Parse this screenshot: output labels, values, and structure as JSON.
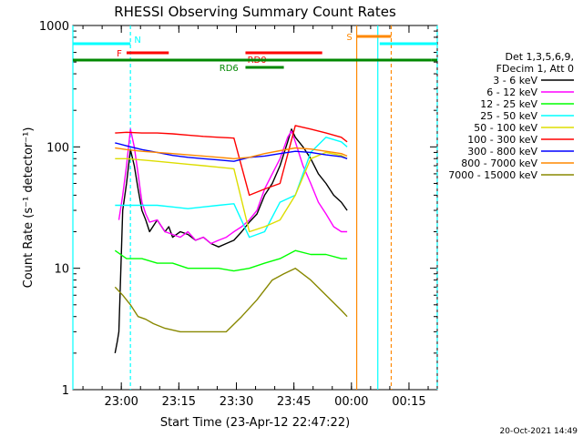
{
  "chart_data": {
    "type": "line",
    "title": "RHESSI Observing Summary Count Rates",
    "xlabel": "Start Time (23-Apr-12 22:47:22)",
    "ylabel": "Count Rate (s⁻¹ detector⁻¹)",
    "y_scale": "log",
    "xlim_minutes_from_start": [
      0,
      95
    ],
    "ylim": [
      1,
      1000
    ],
    "x_tick_labels": [
      "23:00",
      "23:15",
      "23:30",
      "23:45",
      "00:00",
      "00:15"
    ],
    "x_tick_minutes": [
      12.63,
      27.63,
      42.63,
      57.63,
      72.63,
      87.63
    ],
    "y_tick_labels": [
      "1",
      "10",
      "100",
      "1000"
    ],
    "y_tick_values": [
      1,
      10,
      100,
      1000
    ],
    "legend_placement": "right",
    "legend_header": [
      "Det 1,3,5,6,9,",
      "FDecim 1, Att 0"
    ],
    "footer_date": "20-Oct-2021 14:49",
    "series": [
      {
        "name": "3 - 6 keV",
        "color": "#000000",
        "x": [
          11,
          11.6,
          12,
          13,
          14,
          15,
          16,
          17,
          18,
          19,
          20,
          22,
          24,
          25,
          26,
          28,
          30,
          32,
          34,
          36,
          38,
          40,
          42,
          44,
          46,
          48,
          50,
          52,
          54,
          56,
          57,
          58,
          60,
          62,
          64,
          66,
          68,
          70,
          71.5
        ],
        "y": [
          2,
          2.5,
          3,
          30,
          50,
          95,
          70,
          45,
          30,
          25,
          20,
          25,
          20,
          22,
          18,
          20,
          19,
          17,
          18,
          16,
          15,
          16,
          17,
          20,
          24,
          28,
          40,
          50,
          70,
          110,
          140,
          120,
          100,
          80,
          60,
          50,
          40,
          35,
          30
        ]
      },
      {
        "name": "6 - 12 keV",
        "color": "#ff00ff",
        "x": [
          12,
          13,
          14,
          15,
          16,
          17,
          18,
          19,
          20,
          22,
          24,
          26,
          28,
          30,
          32,
          34,
          36,
          38,
          40,
          42,
          44,
          46,
          48,
          50,
          52,
          54,
          56,
          57,
          58,
          60,
          62,
          64,
          66,
          68,
          70,
          71.5
        ],
        "y": [
          25,
          40,
          70,
          140,
          100,
          60,
          35,
          28,
          24,
          25,
          20,
          19,
          18,
          20,
          17,
          18,
          16,
          17,
          18,
          20,
          22,
          25,
          30,
          45,
          60,
          80,
          120,
          135,
          110,
          70,
          50,
          35,
          28,
          22,
          20,
          20
        ]
      },
      {
        "name": "12 - 25 keV",
        "color": "#00ff00",
        "x": [
          11,
          14,
          18,
          22,
          26,
          30,
          34,
          38,
          42,
          46,
          50,
          54,
          58,
          62,
          66,
          70,
          71.5
        ],
        "y": [
          14,
          12,
          12,
          11,
          11,
          10,
          10,
          10,
          9.5,
          10,
          11,
          12,
          14,
          13,
          13,
          12,
          12
        ]
      },
      {
        "name": "25 - 50 keV",
        "color": "#00ffff",
        "x": [
          11,
          14,
          18,
          22,
          26,
          30,
          34,
          38,
          42,
          46,
          50,
          54,
          58,
          62,
          66,
          70,
          71.5
        ],
        "y": [
          33,
          33,
          33,
          33,
          32,
          31,
          32,
          33,
          34,
          18,
          20,
          35,
          40,
          90,
          120,
          110,
          100
        ]
      },
      {
        "name": "50 - 100 keV",
        "color": "#dddd00",
        "x": [
          11,
          14,
          18,
          22,
          26,
          30,
          34,
          38,
          42,
          46,
          50,
          54,
          58,
          62,
          66,
          70,
          71.5
        ],
        "y": [
          80,
          80,
          78,
          76,
          74,
          72,
          70,
          68,
          66,
          20,
          22,
          25,
          40,
          80,
          90,
          85,
          80
        ]
      },
      {
        "name": "100 - 300 keV",
        "color": "#ff0000",
        "x": [
          11,
          14,
          18,
          22,
          26,
          30,
          34,
          38,
          42,
          46,
          50,
          54,
          58,
          62,
          66,
          70,
          71.5
        ],
        "y": [
          130,
          132,
          130,
          130,
          128,
          125,
          122,
          120,
          118,
          40,
          45,
          50,
          150,
          140,
          130,
          120,
          110
        ]
      },
      {
        "name": "300 - 800 keV",
        "color": "#0000ff",
        "x": [
          11,
          14,
          18,
          22,
          26,
          30,
          34,
          38,
          42,
          46,
          50,
          54,
          58,
          62,
          66,
          70,
          71.5
        ],
        "y": [
          108,
          102,
          95,
          90,
          85,
          82,
          80,
          78,
          76,
          82,
          84,
          88,
          92,
          90,
          86,
          83,
          80
        ]
      },
      {
        "name": "800 - 7000 keV",
        "color": "#ff8800",
        "x": [
          11,
          14,
          18,
          22,
          26,
          30,
          34,
          38,
          42,
          46,
          50,
          54,
          58,
          62,
          66,
          70,
          71.5
        ],
        "y": [
          98,
          95,
          92,
          90,
          88,
          86,
          84,
          82,
          80,
          82,
          88,
          93,
          98,
          96,
          92,
          88,
          84
        ]
      },
      {
        "name": "7000 - 15000 keV",
        "color": "#888800",
        "x": [
          11,
          13,
          15,
          17,
          19,
          21,
          24,
          28,
          32,
          36,
          40,
          44,
          48,
          52,
          55,
          58,
          62,
          66,
          70,
          71.5
        ],
        "y": [
          7,
          6,
          5,
          4,
          3.8,
          3.5,
          3.2,
          3,
          3,
          3,
          3,
          4,
          5.5,
          8,
          9,
          10,
          8,
          6,
          4.5,
          4
        ]
      }
    ],
    "flag_bars": [
      {
        "label": "N",
        "color": "#00ffff",
        "segments": [
          [
            0,
            15
          ],
          [
            80,
            95
          ]
        ]
      },
      {
        "label": "F",
        "color": "#ff0000",
        "segments": [
          [
            14,
            25
          ]
        ]
      },
      {
        "label": "RD0",
        "color": "#ff0000",
        "segments": [
          [
            45,
            65
          ]
        ]
      },
      {
        "label": "RD6",
        "color": "#008800",
        "segments": [
          [
            45,
            55
          ]
        ]
      },
      {
        "label": "",
        "color": "#008800",
        "segments": [
          [
            0,
            93.5
          ],
          [
            93.5,
            95
          ]
        ]
      },
      {
        "label": "S",
        "color": "#ff8800",
        "segments": [
          [
            74,
            83
          ]
        ]
      }
    ],
    "vertical_lines": [
      {
        "x": 0,
        "color": "#00ffff",
        "style": "solid"
      },
      {
        "x": 15,
        "color": "#00ffff",
        "style": "dashed"
      },
      {
        "x": 74,
        "color": "#ff8800",
        "style": "solid"
      },
      {
        "x": 79.5,
        "color": "#00ffff",
        "style": "solid"
      },
      {
        "x": 83,
        "color": "#ff8800",
        "style": "dashed"
      },
      {
        "x": 95,
        "color": "#00ffff",
        "style": "dashed"
      }
    ]
  }
}
